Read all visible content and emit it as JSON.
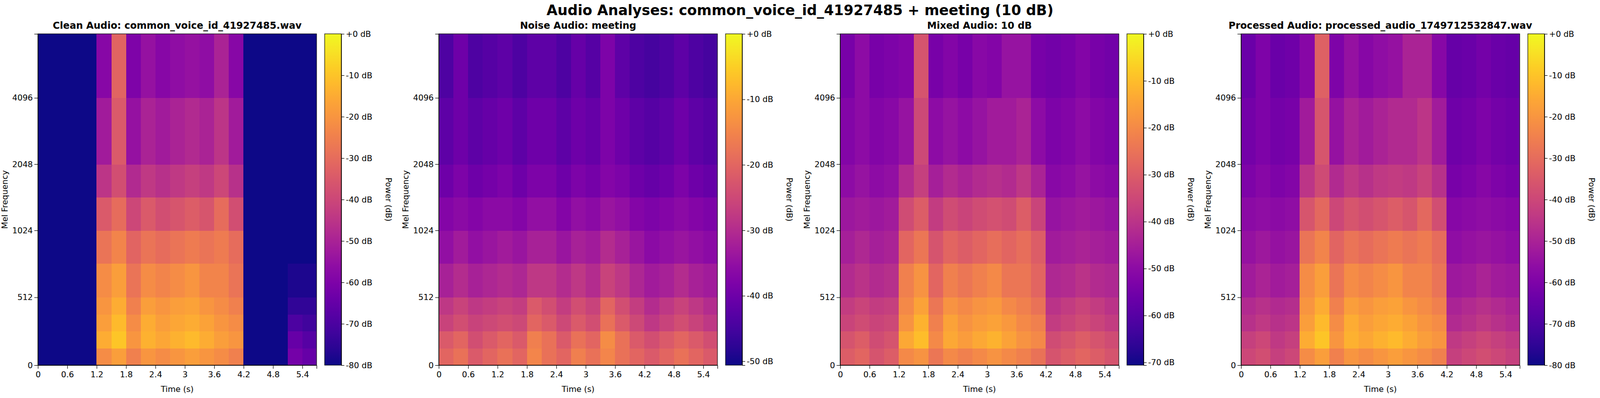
{
  "title": "Audio Analyses: common_voice_id_41927485 + meeting (10 dB)",
  "chart_data": [
    {
      "type": "heatmap",
      "title": "Clean Audio: common_voice_id_41927485.wav",
      "x_label": "Time (s)",
      "y_label": "Mel Frequency",
      "color": "plasma",
      "x": [
        0,
        0.3,
        0.6,
        0.9,
        1.2,
        1.5,
        1.8,
        2.1,
        2.4,
        2.7,
        3,
        3.3,
        3.6,
        3.9,
        4.2,
        4.5,
        4.8,
        5.1,
        5.4,
        5.69
      ],
      "y": [
        0,
        128,
        256,
        384,
        512,
        768,
        1024,
        1448,
        2048,
        4096,
        8000
      ],
      "values": [
        [
          -80,
          -80,
          -80,
          -80,
          -22,
          -18,
          -25,
          -20,
          -22,
          -20,
          -18,
          -20,
          -22,
          -25,
          -80,
          -80,
          -80,
          -62,
          -65
        ],
        [
          -80,
          -80,
          -80,
          -80,
          -15,
          -10,
          -20,
          -14,
          -16,
          -14,
          -12,
          -15,
          -18,
          -20,
          -80,
          -80,
          -80,
          -65,
          -68
        ],
        [
          -80,
          -80,
          -80,
          -80,
          -18,
          -12,
          -22,
          -15,
          -18,
          -16,
          -15,
          -17,
          -20,
          -22,
          -80,
          -80,
          -80,
          -70,
          -72
        ],
        [
          -80,
          -80,
          -80,
          -80,
          -20,
          -15,
          -25,
          -18,
          -20,
          -18,
          -17,
          -20,
          -22,
          -25,
          -80,
          -80,
          -80,
          -75,
          -75
        ],
        [
          -80,
          -80,
          -80,
          -80,
          -22,
          -18,
          -28,
          -22,
          -24,
          -22,
          -20,
          -24,
          -24,
          -28,
          -80,
          -80,
          -80,
          -78,
          -78
        ],
        [
          -80,
          -80,
          -80,
          -80,
          -28,
          -24,
          -32,
          -28,
          -30,
          -28,
          -26,
          -28,
          -26,
          -30,
          -80,
          -80,
          -80,
          -80,
          -80
        ],
        [
          -80,
          -80,
          -80,
          -80,
          -35,
          -30,
          -40,
          -35,
          -38,
          -36,
          -34,
          -36,
          -30,
          -38,
          -80,
          -80,
          -80,
          -80,
          -80
        ],
        [
          -80,
          -80,
          -80,
          -80,
          -45,
          -38,
          -48,
          -44,
          -46,
          -44,
          -42,
          -44,
          -40,
          -46,
          -80,
          -80,
          -80,
          -80,
          -80
        ],
        [
          -80,
          -80,
          -80,
          -80,
          -52,
          -35,
          -55,
          -50,
          -52,
          -50,
          -48,
          -50,
          -45,
          -52,
          -80,
          -80,
          -80,
          -80,
          -80
        ],
        [
          -80,
          -80,
          -80,
          -80,
          -58,
          -32,
          -60,
          -55,
          -58,
          -56,
          -55,
          -56,
          -50,
          -58,
          -80,
          -80,
          -80,
          -80,
          -80
        ]
      ],
      "xlim": [
        0,
        5.69
      ],
      "xticks": [
        0,
        0.6,
        1.2,
        1.8,
        2.4,
        3,
        3.6,
        4.2,
        4.8,
        5.4
      ],
      "ylim": [
        0,
        8000
      ],
      "yticks": [
        0,
        512,
        1024,
        2048,
        4096
      ],
      "colorbar": {
        "label": "Power (dB)",
        "range": [
          -80,
          0
        ],
        "ticks": [
          {
            "value": 0,
            "label": "+0 dB"
          },
          {
            "value": -10,
            "label": "-10 dB"
          },
          {
            "value": -20,
            "label": "-20 dB"
          },
          {
            "value": -30,
            "label": "-30 dB"
          },
          {
            "value": -40,
            "label": "-40 dB"
          },
          {
            "value": -50,
            "label": "-50 dB"
          },
          {
            "value": -60,
            "label": "-60 dB"
          },
          {
            "value": -70,
            "label": "-70 dB"
          },
          {
            "value": -80,
            "label": "-80 dB"
          }
        ]
      }
    },
    {
      "type": "heatmap",
      "title": "Noise Audio: meeting",
      "x_label": "Time (s)",
      "y_label": "Mel Frequency",
      "color": "plasma",
      "x": [
        0,
        0.3,
        0.6,
        0.9,
        1.2,
        1.5,
        1.8,
        2.1,
        2.4,
        2.7,
        3,
        3.3,
        3.6,
        3.9,
        4.2,
        4.5,
        4.8,
        5.1,
        5.4,
        5.69
      ],
      "y": [
        0,
        128,
        256,
        384,
        512,
        768,
        1024,
        1448,
        2048,
        4096,
        8000
      ],
      "values": [
        [
          -20,
          -18,
          -22,
          -20,
          -18,
          -20,
          -15,
          -18,
          -20,
          -16,
          -18,
          -15,
          -18,
          -20,
          -22,
          -20,
          -18,
          -20,
          -22
        ],
        [
          -22,
          -20,
          -24,
          -22,
          -20,
          -22,
          -16,
          -18,
          -22,
          -18,
          -20,
          -14,
          -18,
          -22,
          -24,
          -22,
          -20,
          -22,
          -24
        ],
        [
          -26,
          -24,
          -26,
          -25,
          -24,
          -25,
          -20,
          -22,
          -25,
          -22,
          -24,
          -18,
          -22,
          -25,
          -28,
          -26,
          -24,
          -26,
          -28
        ],
        [
          -28,
          -26,
          -28,
          -27,
          -26,
          -27,
          -22,
          -24,
          -27,
          -24,
          -26,
          -20,
          -24,
          -27,
          -30,
          -28,
          -26,
          -28,
          -30
        ],
        [
          -32,
          -30,
          -32,
          -31,
          -30,
          -31,
          -28,
          -28,
          -30,
          -28,
          -30,
          -26,
          -28,
          -31,
          -33,
          -32,
          -30,
          -32,
          -33
        ],
        [
          -35,
          -33,
          -35,
          -34,
          -33,
          -34,
          -32,
          -32,
          -34,
          -32,
          -33,
          -30,
          -32,
          -34,
          -36,
          -35,
          -34,
          -35,
          -36
        ],
        [
          -37,
          -36,
          -37,
          -36,
          -36,
          -37,
          -35,
          -35,
          -37,
          -35,
          -36,
          -34,
          -35,
          -37,
          -38,
          -37,
          -36,
          -37,
          -38
        ],
        [
          -40,
          -38,
          -40,
          -39,
          -38,
          -40,
          -38,
          -38,
          -40,
          -38,
          -39,
          -37,
          -38,
          -40,
          -41,
          -40,
          -38,
          -40,
          -41
        ],
        [
          -42,
          -40,
          -42,
          -41,
          -40,
          -42,
          -40,
          -40,
          -42,
          -40,
          -41,
          -38,
          -40,
          -42,
          -43,
          -42,
          -40,
          -42,
          -43
        ],
        [
          -44,
          -40,
          -44,
          -43,
          -42,
          -44,
          -42,
          -42,
          -44,
          -41,
          -43,
          -38,
          -42,
          -44,
          -45,
          -44,
          -42,
          -44,
          -45
        ]
      ],
      "xlim": [
        0,
        5.69
      ],
      "xticks": [
        0,
        0.6,
        1.2,
        1.8,
        2.4,
        3,
        3.6,
        4.2,
        4.8,
        5.4
      ],
      "ylim": [
        0,
        8000
      ],
      "yticks": [
        0,
        512,
        1024,
        2048,
        4096
      ],
      "colorbar": {
        "label": "Power (dB)",
        "range": [
          -50.6,
          0
        ],
        "ticks": [
          {
            "value": 0,
            "label": "+0 dB"
          },
          {
            "value": -10,
            "label": "-10 dB"
          },
          {
            "value": -20,
            "label": "-20 dB"
          },
          {
            "value": -30,
            "label": "-30 dB"
          },
          {
            "value": -40,
            "label": "-40 dB"
          },
          {
            "value": -50,
            "label": "-50 dB"
          }
        ]
      }
    },
    {
      "type": "heatmap",
      "title": "Mixed Audio: 10 dB",
      "x_label": "Time (s)",
      "y_label": "Mel Frequency",
      "color": "plasma",
      "x": [
        0,
        0.3,
        0.6,
        0.9,
        1.2,
        1.5,
        1.8,
        2.1,
        2.4,
        2.7,
        3,
        3.3,
        3.6,
        3.9,
        4.2,
        4.5,
        4.8,
        5.1,
        5.4,
        5.69
      ],
      "y": [
        0,
        128,
        256,
        384,
        512,
        768,
        1024,
        1448,
        2048,
        4096,
        8000
      ],
      "values": [
        [
          -30,
          -28,
          -32,
          -30,
          -20,
          -18,
          -24,
          -20,
          -22,
          -20,
          -18,
          -20,
          -22,
          -25,
          -32,
          -30,
          -28,
          -30,
          -32
        ],
        [
          -32,
          -30,
          -34,
          -32,
          -14,
          -10,
          -20,
          -14,
          -16,
          -14,
          -12,
          -15,
          -18,
          -20,
          -34,
          -32,
          -30,
          -32,
          -34
        ],
        [
          -36,
          -34,
          -36,
          -35,
          -18,
          -12,
          -22,
          -15,
          -18,
          -16,
          -15,
          -17,
          -20,
          -22,
          -38,
          -36,
          -34,
          -36,
          -38
        ],
        [
          -38,
          -36,
          -38,
          -37,
          -20,
          -15,
          -24,
          -18,
          -20,
          -18,
          -17,
          -20,
          -22,
          -25,
          -40,
          -38,
          -36,
          -38,
          -40
        ],
        [
          -42,
          -40,
          -42,
          -41,
          -22,
          -18,
          -28,
          -22,
          -24,
          -22,
          -20,
          -24,
          -24,
          -28,
          -43,
          -42,
          -40,
          -42,
          -43
        ],
        [
          -45,
          -43,
          -45,
          -44,
          -28,
          -24,
          -32,
          -28,
          -30,
          -28,
          -26,
          -28,
          -26,
          -30,
          -46,
          -45,
          -44,
          -45,
          -46
        ],
        [
          -47,
          -46,
          -47,
          -46,
          -34,
          -30,
          -38,
          -34,
          -36,
          -34,
          -33,
          -34,
          -30,
          -36,
          -48,
          -47,
          -46,
          -47,
          -48
        ],
        [
          -50,
          -48,
          -50,
          -49,
          -42,
          -37,
          -45,
          -42,
          -44,
          -42,
          -41,
          -42,
          -39,
          -44,
          -51,
          -50,
          -48,
          -50,
          -51
        ],
        [
          -52,
          -50,
          -52,
          -51,
          -48,
          -35,
          -50,
          -48,
          -50,
          -48,
          -46,
          -46,
          -44,
          -50,
          -53,
          -52,
          -50,
          -52,
          -53
        ],
        [
          -54,
          -50,
          -54,
          -53,
          -52,
          -32,
          -54,
          -52,
          -54,
          -51,
          -52,
          -48,
          -48,
          -54,
          -55,
          -54,
          -52,
          -54,
          -55
        ]
      ],
      "xlim": [
        0,
        5.69
      ],
      "xticks": [
        0,
        0.6,
        1.2,
        1.8,
        2.4,
        3,
        3.6,
        4.2,
        4.8,
        5.4
      ],
      "ylim": [
        0,
        8000
      ],
      "yticks": [
        0,
        512,
        1024,
        2048,
        4096
      ],
      "colorbar": {
        "label": "Power (dB)",
        "range": [
          -70.6,
          0
        ],
        "ticks": [
          {
            "value": 0,
            "label": "+0 dB"
          },
          {
            "value": -10,
            "label": "-10 dB"
          },
          {
            "value": -20,
            "label": "-20 dB"
          },
          {
            "value": -30,
            "label": "-30 dB"
          },
          {
            "value": -40,
            "label": "-40 dB"
          },
          {
            "value": -50,
            "label": "-50 dB"
          },
          {
            "value": -60,
            "label": "-60 dB"
          },
          {
            "value": -70,
            "label": "-70 dB"
          }
        ]
      }
    },
    {
      "type": "heatmap",
      "title": "Processed Audio: processed_audio_1749712532847.wav",
      "x_label": "Time (s)",
      "y_label": "Mel Frequency",
      "color": "plasma",
      "x": [
        0,
        0.3,
        0.6,
        0.9,
        1.2,
        1.5,
        1.8,
        2.1,
        2.4,
        2.7,
        3,
        3.3,
        3.6,
        3.9,
        4.2,
        4.5,
        4.8,
        5.1,
        5.4,
        5.69
      ],
      "y": [
        0,
        128,
        256,
        384,
        512,
        768,
        1024,
        1448,
        2048,
        4096,
        8000
      ],
      "values": [
        [
          -40,
          -38,
          -42,
          -40,
          -22,
          -18,
          -25,
          -20,
          -22,
          -20,
          -18,
          -20,
          -22,
          -25,
          -42,
          -40,
          -38,
          -40,
          -42
        ],
        [
          -42,
          -40,
          -44,
          -42,
          -15,
          -10,
          -20,
          -14,
          -16,
          -14,
          -12,
          -15,
          -18,
          -20,
          -44,
          -42,
          -40,
          -42,
          -44
        ],
        [
          -46,
          -44,
          -46,
          -45,
          -18,
          -12,
          -22,
          -15,
          -18,
          -16,
          -15,
          -17,
          -20,
          -22,
          -48,
          -46,
          -44,
          -46,
          -48
        ],
        [
          -48,
          -46,
          -48,
          -47,
          -20,
          -15,
          -25,
          -18,
          -20,
          -18,
          -17,
          -20,
          -22,
          -25,
          -50,
          -48,
          -46,
          -48,
          -50
        ],
        [
          -52,
          -50,
          -52,
          -51,
          -22,
          -18,
          -28,
          -22,
          -24,
          -22,
          -20,
          -24,
          -24,
          -28,
          -53,
          -52,
          -50,
          -52,
          -53
        ],
        [
          -55,
          -53,
          -55,
          -54,
          -28,
          -24,
          -32,
          -28,
          -30,
          -28,
          -26,
          -28,
          -26,
          -30,
          -56,
          -55,
          -54,
          -55,
          -56
        ],
        [
          -57,
          -56,
          -57,
          -56,
          -36,
          -31,
          -40,
          -36,
          -38,
          -36,
          -34,
          -36,
          -31,
          -38,
          -58,
          -57,
          -56,
          -57,
          -58
        ],
        [
          -60,
          -58,
          -60,
          -59,
          -45,
          -39,
          -48,
          -44,
          -46,
          -44,
          -43,
          -44,
          -41,
          -46,
          -61,
          -60,
          -58,
          -60,
          -61
        ],
        [
          -62,
          -60,
          -62,
          -61,
          -52,
          -36,
          -55,
          -50,
          -52,
          -50,
          -48,
          -48,
          -45,
          -52,
          -63,
          -62,
          -60,
          -62,
          -63
        ],
        [
          -64,
          -60,
          -64,
          -63,
          -58,
          -33,
          -60,
          -55,
          -58,
          -56,
          -55,
          -50,
          -50,
          -58,
          -65,
          -64,
          -62,
          -64,
          -65
        ]
      ],
      "xlim": [
        0,
        5.69
      ],
      "xticks": [
        0,
        0.6,
        1.2,
        1.8,
        2.4,
        3,
        3.6,
        4.2,
        4.8,
        5.4
      ],
      "ylim": [
        0,
        8000
      ],
      "yticks": [
        0,
        512,
        1024,
        2048,
        4096
      ],
      "colorbar": {
        "label": "Power (dB)",
        "range": [
          -80,
          0
        ],
        "ticks": [
          {
            "value": 0,
            "label": "+0 dB"
          },
          {
            "value": -10,
            "label": "-10 dB"
          },
          {
            "value": -20,
            "label": "-20 dB"
          },
          {
            "value": -30,
            "label": "-30 dB"
          },
          {
            "value": -40,
            "label": "-40 dB"
          },
          {
            "value": -50,
            "label": "-50 dB"
          },
          {
            "value": -60,
            "label": "-60 dB"
          },
          {
            "value": -70,
            "label": "-70 dB"
          },
          {
            "value": -80,
            "label": "-80 dB"
          }
        ]
      }
    }
  ]
}
